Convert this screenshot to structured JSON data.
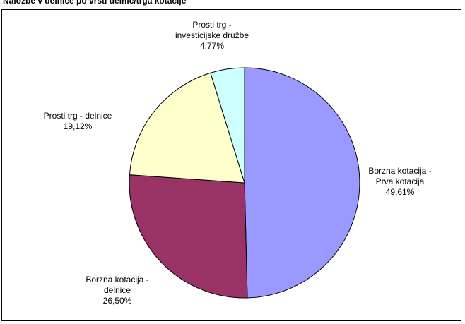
{
  "chart_data": {
    "type": "pie",
    "title": "Naložbe v delnice po vrsti delnic/trga kotacije",
    "slices": [
      {
        "name": "Borzna kotacija - Prva kotacija",
        "label_lines": [
          "Borzna kotacija -",
          "Prva kotacija",
          "49,61%"
        ],
        "value": 49.61,
        "color": "#9999ff"
      },
      {
        "name": "Borzna kotacija - delnice",
        "label_lines": [
          "Borzna kotacija -",
          "delnice",
          "26,50%"
        ],
        "value": 26.5,
        "color": "#993366"
      },
      {
        "name": "Prosti trg - delnice",
        "label_lines": [
          "Prosti trg - delnice",
          "19,12%"
        ],
        "value": 19.12,
        "color": "#ffffcc"
      },
      {
        "name": "Prosti trg - investicijske družbe",
        "label_lines": [
          "Prosti trg -",
          "investicijske družbe",
          "4,77%"
        ],
        "value": 4.77,
        "color": "#ccffff"
      }
    ],
    "start": "12 o'clock",
    "direction": "clockwise",
    "legend": "none"
  }
}
